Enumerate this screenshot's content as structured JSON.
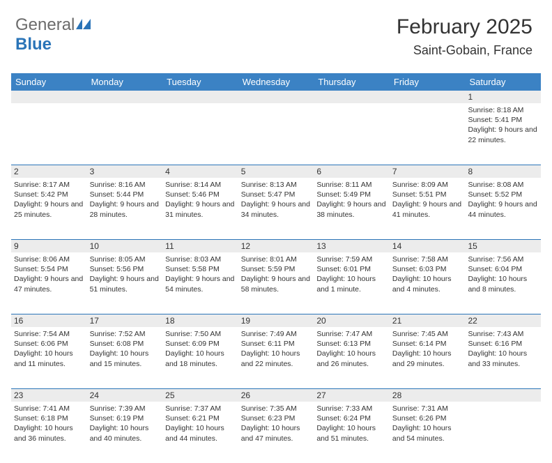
{
  "logo": {
    "general": "General",
    "blue": "Blue"
  },
  "title": "February 2025",
  "location": "Saint-Gobain, France",
  "colors": {
    "header_bg": "#3b82c4",
    "row_separator": "#2a74b8",
    "daynum_bg": "#ececec",
    "text": "#333333",
    "logo_gray": "#6b6b6b",
    "logo_blue": "#2a74b8",
    "background": "#ffffff"
  },
  "typography": {
    "title_fontsize": 30,
    "location_fontsize": 18,
    "header_fontsize": 13,
    "daynum_fontsize": 12,
    "cell_fontsize": 10.5
  },
  "layout": {
    "calendar_width": 760,
    "cell_min_height": 88,
    "columns": 7,
    "rows": 5
  },
  "day_names": [
    "Sunday",
    "Monday",
    "Tuesday",
    "Wednesday",
    "Thursday",
    "Friday",
    "Saturday"
  ],
  "weeks": [
    [
      {
        "day": "",
        "sunrise": "",
        "sunset": "",
        "daylight": ""
      },
      {
        "day": "",
        "sunrise": "",
        "sunset": "",
        "daylight": ""
      },
      {
        "day": "",
        "sunrise": "",
        "sunset": "",
        "daylight": ""
      },
      {
        "day": "",
        "sunrise": "",
        "sunset": "",
        "daylight": ""
      },
      {
        "day": "",
        "sunrise": "",
        "sunset": "",
        "daylight": ""
      },
      {
        "day": "",
        "sunrise": "",
        "sunset": "",
        "daylight": ""
      },
      {
        "day": "1",
        "sunrise": "Sunrise: 8:18 AM",
        "sunset": "Sunset: 5:41 PM",
        "daylight": "Daylight: 9 hours and 22 minutes."
      }
    ],
    [
      {
        "day": "2",
        "sunrise": "Sunrise: 8:17 AM",
        "sunset": "Sunset: 5:42 PM",
        "daylight": "Daylight: 9 hours and 25 minutes."
      },
      {
        "day": "3",
        "sunrise": "Sunrise: 8:16 AM",
        "sunset": "Sunset: 5:44 PM",
        "daylight": "Daylight: 9 hours and 28 minutes."
      },
      {
        "day": "4",
        "sunrise": "Sunrise: 8:14 AM",
        "sunset": "Sunset: 5:46 PM",
        "daylight": "Daylight: 9 hours and 31 minutes."
      },
      {
        "day": "5",
        "sunrise": "Sunrise: 8:13 AM",
        "sunset": "Sunset: 5:47 PM",
        "daylight": "Daylight: 9 hours and 34 minutes."
      },
      {
        "day": "6",
        "sunrise": "Sunrise: 8:11 AM",
        "sunset": "Sunset: 5:49 PM",
        "daylight": "Daylight: 9 hours and 38 minutes."
      },
      {
        "day": "7",
        "sunrise": "Sunrise: 8:09 AM",
        "sunset": "Sunset: 5:51 PM",
        "daylight": "Daylight: 9 hours and 41 minutes."
      },
      {
        "day": "8",
        "sunrise": "Sunrise: 8:08 AM",
        "sunset": "Sunset: 5:52 PM",
        "daylight": "Daylight: 9 hours and 44 minutes."
      }
    ],
    [
      {
        "day": "9",
        "sunrise": "Sunrise: 8:06 AM",
        "sunset": "Sunset: 5:54 PM",
        "daylight": "Daylight: 9 hours and 47 minutes."
      },
      {
        "day": "10",
        "sunrise": "Sunrise: 8:05 AM",
        "sunset": "Sunset: 5:56 PM",
        "daylight": "Daylight: 9 hours and 51 minutes."
      },
      {
        "day": "11",
        "sunrise": "Sunrise: 8:03 AM",
        "sunset": "Sunset: 5:58 PM",
        "daylight": "Daylight: 9 hours and 54 minutes."
      },
      {
        "day": "12",
        "sunrise": "Sunrise: 8:01 AM",
        "sunset": "Sunset: 5:59 PM",
        "daylight": "Daylight: 9 hours and 58 minutes."
      },
      {
        "day": "13",
        "sunrise": "Sunrise: 7:59 AM",
        "sunset": "Sunset: 6:01 PM",
        "daylight": "Daylight: 10 hours and 1 minute."
      },
      {
        "day": "14",
        "sunrise": "Sunrise: 7:58 AM",
        "sunset": "Sunset: 6:03 PM",
        "daylight": "Daylight: 10 hours and 4 minutes."
      },
      {
        "day": "15",
        "sunrise": "Sunrise: 7:56 AM",
        "sunset": "Sunset: 6:04 PM",
        "daylight": "Daylight: 10 hours and 8 minutes."
      }
    ],
    [
      {
        "day": "16",
        "sunrise": "Sunrise: 7:54 AM",
        "sunset": "Sunset: 6:06 PM",
        "daylight": "Daylight: 10 hours and 11 minutes."
      },
      {
        "day": "17",
        "sunrise": "Sunrise: 7:52 AM",
        "sunset": "Sunset: 6:08 PM",
        "daylight": "Daylight: 10 hours and 15 minutes."
      },
      {
        "day": "18",
        "sunrise": "Sunrise: 7:50 AM",
        "sunset": "Sunset: 6:09 PM",
        "daylight": "Daylight: 10 hours and 18 minutes."
      },
      {
        "day": "19",
        "sunrise": "Sunrise: 7:49 AM",
        "sunset": "Sunset: 6:11 PM",
        "daylight": "Daylight: 10 hours and 22 minutes."
      },
      {
        "day": "20",
        "sunrise": "Sunrise: 7:47 AM",
        "sunset": "Sunset: 6:13 PM",
        "daylight": "Daylight: 10 hours and 26 minutes."
      },
      {
        "day": "21",
        "sunrise": "Sunrise: 7:45 AM",
        "sunset": "Sunset: 6:14 PM",
        "daylight": "Daylight: 10 hours and 29 minutes."
      },
      {
        "day": "22",
        "sunrise": "Sunrise: 7:43 AM",
        "sunset": "Sunset: 6:16 PM",
        "daylight": "Daylight: 10 hours and 33 minutes."
      }
    ],
    [
      {
        "day": "23",
        "sunrise": "Sunrise: 7:41 AM",
        "sunset": "Sunset: 6:18 PM",
        "daylight": "Daylight: 10 hours and 36 minutes."
      },
      {
        "day": "24",
        "sunrise": "Sunrise: 7:39 AM",
        "sunset": "Sunset: 6:19 PM",
        "daylight": "Daylight: 10 hours and 40 minutes."
      },
      {
        "day": "25",
        "sunrise": "Sunrise: 7:37 AM",
        "sunset": "Sunset: 6:21 PM",
        "daylight": "Daylight: 10 hours and 44 minutes."
      },
      {
        "day": "26",
        "sunrise": "Sunrise: 7:35 AM",
        "sunset": "Sunset: 6:23 PM",
        "daylight": "Daylight: 10 hours and 47 minutes."
      },
      {
        "day": "27",
        "sunrise": "Sunrise: 7:33 AM",
        "sunset": "Sunset: 6:24 PM",
        "daylight": "Daylight: 10 hours and 51 minutes."
      },
      {
        "day": "28",
        "sunrise": "Sunrise: 7:31 AM",
        "sunset": "Sunset: 6:26 PM",
        "daylight": "Daylight: 10 hours and 54 minutes."
      },
      {
        "day": "",
        "sunrise": "",
        "sunset": "",
        "daylight": ""
      }
    ]
  ]
}
